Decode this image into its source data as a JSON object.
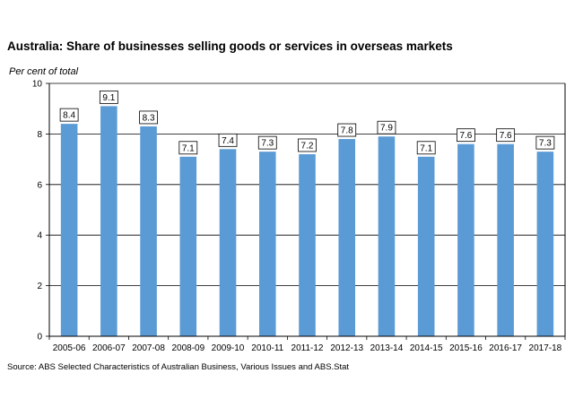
{
  "chart_data": {
    "type": "bar",
    "title": "Australia: Share of businesses selling goods or services in overseas markets",
    "ylabel": "Per cent of total",
    "xlabel": "",
    "ylim": [
      0,
      10
    ],
    "yticks": [
      "0",
      "2",
      "4",
      "6",
      "8",
      "10"
    ],
    "grid": true,
    "bar_color": "#5b9bd5",
    "categories": [
      "2005-06",
      "2006-07",
      "2007-08",
      "2008-09",
      "2009-10",
      "2010-11",
      "2011-12",
      "2012-13",
      "2013-14",
      "2014-15",
      "2015-16",
      "2016-17",
      "2017-18"
    ],
    "values": [
      8.4,
      9.1,
      8.3,
      7.1,
      7.4,
      7.3,
      7.2,
      7.8,
      7.9,
      7.1,
      7.6,
      7.6,
      7.3
    ],
    "data_labels": [
      "8.4",
      "9.1",
      "8.3",
      "7.1",
      "7.4",
      "7.3",
      "7.2",
      "7.8",
      "7.9",
      "7.1",
      "7.6",
      "7.6",
      "7.3"
    ],
    "source": "Source: ABS Selected Characteristics of Australian Business, Various Issues and ABS.Stat"
  }
}
